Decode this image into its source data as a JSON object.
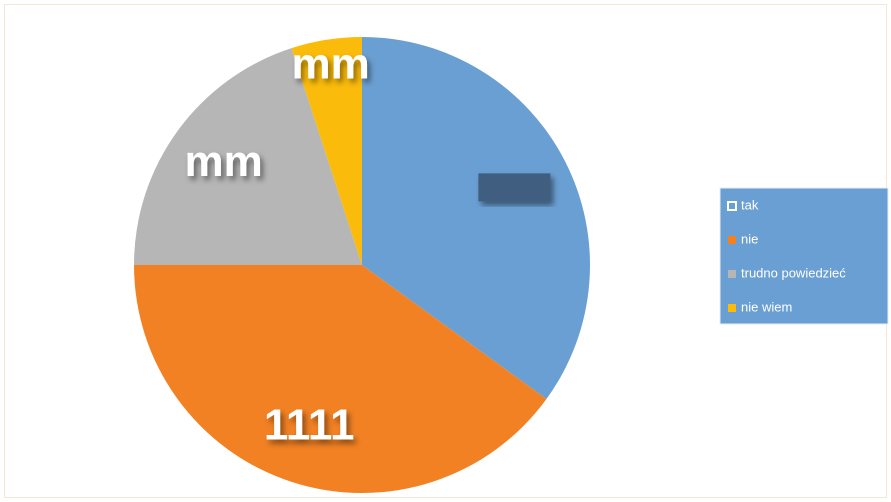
{
  "chart_data": {
    "type": "pie",
    "categories": [
      "tak",
      "nie",
      "trudno powiedzieć",
      "nie wiem"
    ],
    "values": [
      35,
      40,
      20,
      5
    ],
    "value_labels": [
      null,
      "1111",
      "mm",
      "mm"
    ],
    "colors": [
      "#6a9fd3",
      "#f28123",
      "#b5b6b5",
      "#fbbb0b"
    ],
    "legend": "right"
  }
}
